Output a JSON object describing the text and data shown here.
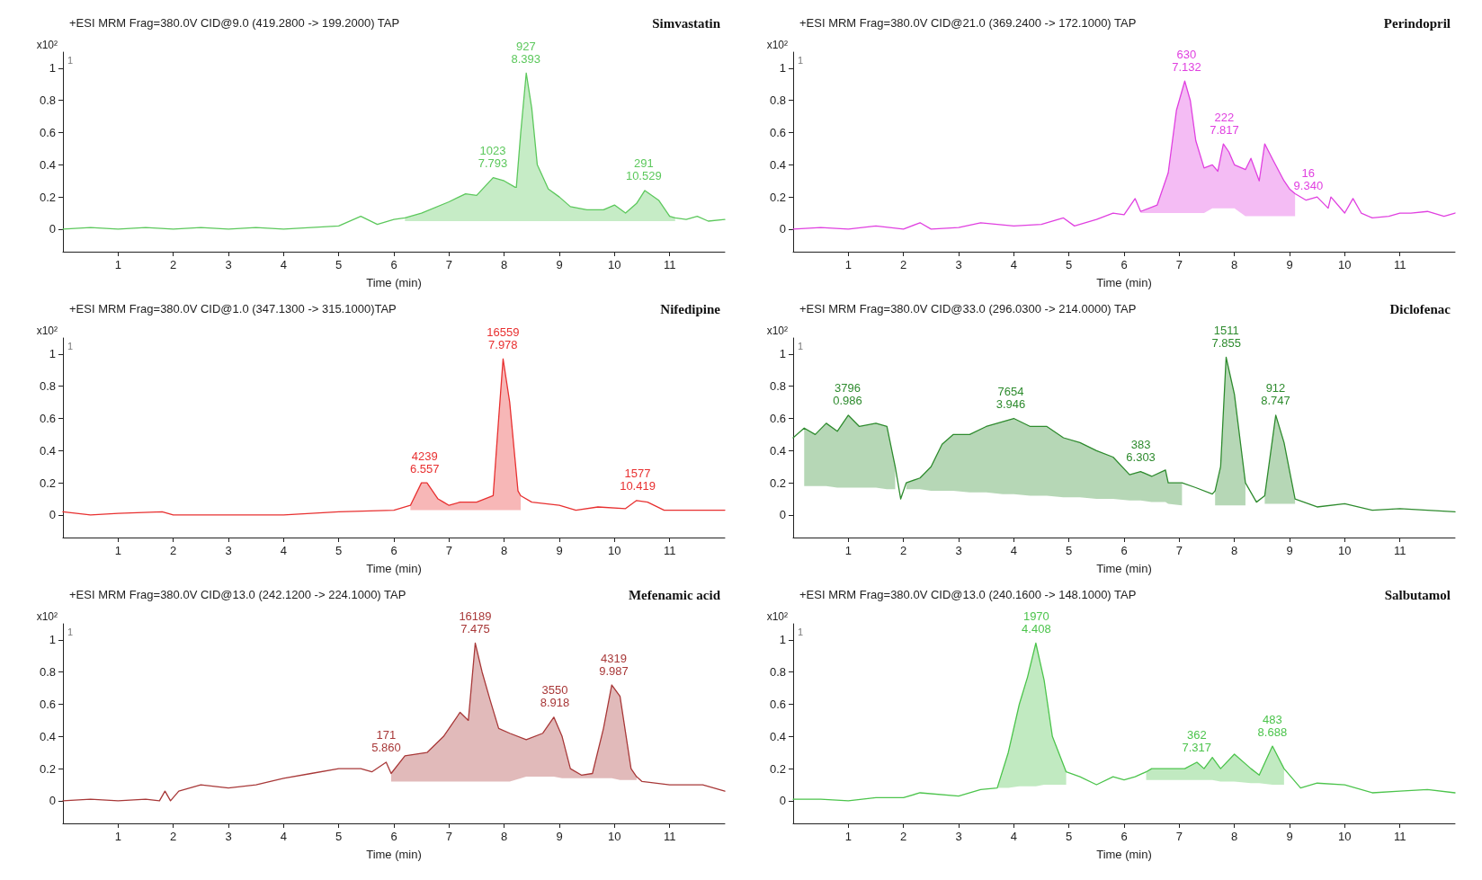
{
  "chart_data": [
    {
      "type": "line",
      "title": "+ESI MRM Frag=380.0V CID@9.0 (419.2800 -> 199.2000) TAP",
      "subtitle": "Simvastatin",
      "xlabel": "Time (min)",
      "ylabel": "x10²",
      "xlim": [
        0,
        12
      ],
      "xticks": [
        1,
        2,
        3,
        4,
        5,
        6,
        7,
        8,
        9,
        10,
        11
      ],
      "ylim": [
        -0.14,
        1.1
      ],
      "yticks": [
        0,
        0.2,
        0.4,
        0.6,
        0.8,
        1
      ],
      "grid": false,
      "marker": "none",
      "annotations": [
        "1",
        {
          "text": "927\n8.393",
          "x": 8.393,
          "y": 0.97
        },
        {
          "text": "1023\n7.793",
          "x": 7.793,
          "y": 0.32
        },
        {
          "text": "291\n10.529",
          "x": 10.529,
          "y": 0.24
        }
      ],
      "series": [
        {
          "color": "#5cc85c",
          "x": [
            0,
            0.5,
            1,
            1.5,
            2,
            2.5,
            3,
            3.5,
            4,
            4.5,
            5,
            5.4,
            5.7,
            6,
            6.2,
            6.5,
            7,
            7.3,
            7.5,
            7.8,
            8,
            8.2,
            8.22,
            8.3,
            8.4,
            8.5,
            8.6,
            8.8,
            9,
            9.2,
            9.5,
            9.8,
            10,
            10.2,
            10.4,
            10.55,
            10.8,
            11,
            11.1,
            11.3,
            11.5,
            11.7,
            12
          ],
          "values": [
            0,
            0.01,
            0,
            0.01,
            0,
            0.01,
            0,
            0.01,
            0,
            0.01,
            0.02,
            0.08,
            0.03,
            0.06,
            0.07,
            0.1,
            0.17,
            0.22,
            0.21,
            0.32,
            0.3,
            0.26,
            0.26,
            0.6,
            0.97,
            0.75,
            0.4,
            0.25,
            0.2,
            0.14,
            0.12,
            0.12,
            0.15,
            0.1,
            0.16,
            0.24,
            0.18,
            0.08,
            0.07,
            0.06,
            0.08,
            0.05,
            0.06
          ],
          "lower": [
            null,
            null,
            null,
            null,
            null,
            null,
            null,
            null,
            null,
            null,
            null,
            null,
            null,
            null,
            0.05,
            0.05,
            0.05,
            0.05,
            0.05,
            0.05,
            0.05,
            0.05,
            0.05,
            0.05,
            0.05,
            0.05,
            0.05,
            0.05,
            0.05,
            0.05,
            0.05,
            0.05,
            0.05,
            0.05,
            0.05,
            0.05,
            0.05,
            0.05,
            0.05,
            null,
            null,
            null,
            null
          ],
          "upper": [
            null,
            null,
            null,
            null,
            null,
            null,
            null,
            null,
            null,
            null,
            null,
            null,
            null,
            null,
            0.07,
            0.1,
            0.17,
            0.22,
            0.21,
            0.32,
            0.3,
            0.26,
            0.26,
            0.6,
            0.97,
            0.75,
            0.4,
            0.25,
            0.2,
            0.14,
            0.12,
            0.12,
            0.15,
            0.1,
            0.16,
            0.24,
            0.18,
            0.08,
            0.07,
            null,
            null,
            null,
            null
          ]
        }
      ]
    },
    {
      "type": "line",
      "title": "+ESI MRM Frag=380.0V CID@21.0 (369.2400 -> 172.1000) TAP",
      "subtitle": "Perindopril",
      "xlabel": "Time (min)",
      "ylabel": "x10²",
      "xlim": [
        0,
        12
      ],
      "xticks": [
        1,
        2,
        3,
        4,
        5,
        6,
        7,
        8,
        9,
        10,
        11
      ],
      "ylim": [
        -0.14,
        1.1
      ],
      "yticks": [
        0,
        0.2,
        0.4,
        0.6,
        0.8,
        1
      ],
      "grid": false,
      "marker": "none",
      "annotations": [
        "1",
        {
          "text": "630\n7.132",
          "x": 7.132,
          "y": 0.92
        },
        {
          "text": "222\n7.817",
          "x": 7.817,
          "y": 0.53
        },
        {
          "text": "16\n9.340",
          "x": 9.34,
          "y": 0.18
        }
      ],
      "series": [
        {
          "color": "#e040e0",
          "x": [
            0,
            0.5,
            1,
            1.5,
            2,
            2.3,
            2.5,
            3,
            3.4,
            4,
            4.5,
            4.9,
            5.1,
            5.5,
            5.8,
            6,
            6.2,
            6.3,
            6.6,
            6.8,
            6.95,
            7.1,
            7.2,
            7.3,
            7.45,
            7.6,
            7.7,
            7.8,
            7.9,
            8,
            8.2,
            8.3,
            8.45,
            8.55,
            8.7,
            8.9,
            9,
            9.1,
            9.3,
            9.5,
            9.7,
            9.75,
            10,
            10.15,
            10.3,
            10.5,
            10.8,
            11,
            11.2,
            11.5,
            11.8,
            12
          ],
          "values": [
            0,
            0.01,
            0,
            0.02,
            0,
            0.04,
            0,
            0.01,
            0.04,
            0.02,
            0.03,
            0.07,
            0.02,
            0.06,
            0.1,
            0.09,
            0.19,
            0.11,
            0.15,
            0.35,
            0.74,
            0.92,
            0.8,
            0.55,
            0.38,
            0.4,
            0.36,
            0.53,
            0.48,
            0.4,
            0.37,
            0.44,
            0.3,
            0.53,
            0.43,
            0.3,
            0.25,
            0.22,
            0.18,
            0.2,
            0.13,
            0.2,
            0.1,
            0.19,
            0.1,
            0.07,
            0.08,
            0.1,
            0.1,
            0.11,
            0.08,
            0.1
          ],
          "lower": [
            null,
            null,
            null,
            null,
            null,
            null,
            null,
            null,
            null,
            null,
            null,
            null,
            null,
            null,
            null,
            null,
            null,
            0.1,
            0.1,
            0.1,
            0.1,
            0.1,
            0.1,
            0.1,
            0.1,
            0.13,
            0.13,
            0.13,
            0.13,
            0.13,
            0.08,
            0.08,
            0.08,
            0.08,
            0.08,
            0.08,
            0.08,
            0.08,
            null,
            null,
            null,
            null,
            null,
            null,
            null,
            null,
            null,
            null,
            null,
            null,
            null,
            null
          ],
          "upper": [
            null,
            null,
            null,
            null,
            null,
            null,
            null,
            null,
            null,
            null,
            null,
            null,
            null,
            null,
            null,
            null,
            null,
            0.11,
            0.15,
            0.35,
            0.74,
            0.92,
            0.8,
            0.55,
            0.38,
            0.4,
            0.36,
            0.53,
            0.48,
            0.4,
            0.37,
            0.44,
            0.3,
            0.53,
            0.43,
            0.3,
            0.25,
            0.22,
            null,
            null,
            null,
            null,
            null,
            null,
            null,
            null,
            null,
            null,
            null,
            null,
            null,
            null
          ]
        }
      ]
    },
    {
      "type": "line",
      "title": "+ESI MRM Frag=380.0V CID@1.0 (347.1300 -> 315.1000)TAP",
      "subtitle": "Nifedipine",
      "xlabel": "Time (min)",
      "ylabel": "x10²",
      "xlim": [
        0,
        12
      ],
      "xticks": [
        1,
        2,
        3,
        4,
        5,
        6,
        7,
        8,
        9,
        10,
        11
      ],
      "ylim": [
        -0.14,
        1.1
      ],
      "yticks": [
        0,
        0.2,
        0.4,
        0.6,
        0.8,
        1
      ],
      "grid": false,
      "marker": "none",
      "annotations": [
        "1",
        {
          "text": "16559\n7.978",
          "x": 7.978,
          "y": 0.97
        },
        {
          "text": "4239\n6.557",
          "x": 6.557,
          "y": 0.2
        },
        {
          "text": "1577\n10.419",
          "x": 10.419,
          "y": 0.09
        }
      ],
      "series": [
        {
          "color": "#e83030",
          "x": [
            0,
            0.5,
            1,
            1.8,
            2,
            3,
            4,
            5,
            6,
            6.3,
            6.5,
            6.6,
            6.8,
            6.9,
            7,
            7.2,
            7.5,
            7.8,
            7.9,
            7.98,
            8.1,
            8.25,
            8.3,
            8.5,
            9,
            9.3,
            9.7,
            10.2,
            10.4,
            10.6,
            10.9,
            11.3,
            12
          ],
          "values": [
            0.02,
            0,
            0.01,
            0.02,
            0,
            0,
            0,
            0.02,
            0.03,
            0.06,
            0.2,
            0.2,
            0.1,
            0.08,
            0.06,
            0.08,
            0.08,
            0.12,
            0.6,
            0.97,
            0.7,
            0.15,
            0.12,
            0.08,
            0.06,
            0.03,
            0.05,
            0.04,
            0.09,
            0.08,
            0.03,
            0.03,
            0.03
          ],
          "lower": [
            null,
            null,
            null,
            null,
            null,
            null,
            null,
            null,
            null,
            0.03,
            0.03,
            0.03,
            0.03,
            0.03,
            0.03,
            0.03,
            0.03,
            0.03,
            0.03,
            0.03,
            0.03,
            0.03,
            0.03,
            null,
            null,
            null,
            null,
            null,
            null,
            null,
            null,
            null,
            null
          ],
          "upper": [
            null,
            null,
            null,
            null,
            null,
            null,
            null,
            null,
            null,
            0.06,
            0.2,
            0.2,
            0.1,
            0.08,
            0.06,
            0.08,
            0.08,
            0.12,
            0.6,
            0.97,
            0.7,
            0.15,
            0.12,
            null,
            null,
            null,
            null,
            null,
            null,
            null,
            null,
            null,
            null
          ]
        }
      ]
    },
    {
      "type": "line",
      "title": "+ESI MRM Frag=380.0V CID@33.0 (296.0300 -> 214.0000) TAP",
      "subtitle": "Diclofenac",
      "xlabel": "Time (min)",
      "ylabel": "x10²",
      "xlim": [
        0,
        12
      ],
      "xticks": [
        1,
        2,
        3,
        4,
        5,
        6,
        7,
        8,
        9,
        10,
        11
      ],
      "ylim": [
        -0.14,
        1.1
      ],
      "yticks": [
        0,
        0.2,
        0.4,
        0.6,
        0.8,
        1
      ],
      "grid": false,
      "marker": "none",
      "annotations": [
        "1",
        {
          "text": "3796\n0.986",
          "x": 0.986,
          "y": 0.62
        },
        {
          "text": "7654\n3.946",
          "x": 3.946,
          "y": 0.6
        },
        {
          "text": "383\n6.303",
          "x": 6.303,
          "y": 0.27
        },
        {
          "text": "1511\n7.855",
          "x": 7.855,
          "y": 0.98
        },
        {
          "text": "912\n8.747",
          "x": 8.747,
          "y": 0.62
        }
      ],
      "series": [
        {
          "color": "#2e8b2e",
          "x": [
            0,
            0.2,
            0.4,
            0.6,
            0.8,
            1,
            1.2,
            1.5,
            1.7,
            1.85,
            1.95,
            2.05,
            2.3,
            2.5,
            2.7,
            2.9,
            3.2,
            3.5,
            3.8,
            4,
            4.3,
            4.6,
            4.9,
            5.2,
            5.5,
            5.8,
            6.1,
            6.3,
            6.5,
            6.75,
            6.8,
            7.05,
            7.3,
            7.6,
            7.65,
            7.75,
            7.85,
            8,
            8.2,
            8.4,
            8.55,
            8.75,
            8.9,
            9.1,
            9.5,
            10,
            10.5,
            11,
            11.5,
            12
          ],
          "values": [
            0.48,
            0.54,
            0.5,
            0.57,
            0.52,
            0.62,
            0.55,
            0.57,
            0.55,
            0.3,
            0.1,
            0.2,
            0.23,
            0.3,
            0.44,
            0.5,
            0.5,
            0.55,
            0.58,
            0.6,
            0.55,
            0.55,
            0.48,
            0.45,
            0.4,
            0.36,
            0.25,
            0.27,
            0.24,
            0.28,
            0.2,
            0.2,
            0.17,
            0.13,
            0.15,
            0.3,
            0.98,
            0.75,
            0.2,
            0.08,
            0.12,
            0.62,
            0.45,
            0.1,
            0.05,
            0.07,
            0.03,
            0.04,
            0.03,
            0.02
          ],
          "lower": [
            null,
            0.18,
            0.18,
            0.18,
            0.17,
            0.17,
            0.17,
            0.17,
            0.16,
            0.16,
            null,
            0.16,
            0.16,
            0.15,
            0.15,
            0.15,
            0.14,
            0.14,
            0.13,
            0.13,
            0.12,
            0.12,
            0.11,
            0.11,
            0.1,
            0.1,
            0.09,
            0.09,
            0.08,
            0.08,
            0.07,
            0.06,
            null,
            null,
            0.06,
            0.06,
            0.06,
            0.06,
            0.06,
            null,
            0.07,
            0.07,
            0.07,
            0.07,
            null,
            null,
            null,
            null,
            null,
            null
          ],
          "upper": [
            null,
            0.54,
            0.5,
            0.57,
            0.52,
            0.62,
            0.55,
            0.57,
            0.55,
            0.3,
            null,
            0.2,
            0.23,
            0.3,
            0.44,
            0.5,
            0.5,
            0.55,
            0.58,
            0.6,
            0.55,
            0.55,
            0.48,
            0.45,
            0.4,
            0.36,
            0.25,
            0.27,
            0.24,
            0.28,
            0.2,
            0.2,
            null,
            null,
            0.15,
            0.3,
            0.98,
            0.75,
            0.2,
            null,
            0.12,
            0.62,
            0.45,
            0.1,
            null,
            null,
            null,
            null,
            null,
            null
          ]
        }
      ]
    },
    {
      "type": "line",
      "title": "+ESI MRM Frag=380.0V CID@13.0 (242.1200 -> 224.1000) TAP",
      "subtitle": "Mefenamic acid",
      "xlabel": "Time (min)",
      "ylabel": "x10²",
      "xlim": [
        0,
        12
      ],
      "xticks": [
        1,
        2,
        3,
        4,
        5,
        6,
        7,
        8,
        9,
        10,
        11
      ],
      "ylim": [
        -0.14,
        1.1
      ],
      "yticks": [
        0,
        0.2,
        0.4,
        0.6,
        0.8,
        1
      ],
      "grid": false,
      "marker": "none",
      "annotations": [
        "1",
        {
          "text": "16189\n7.475",
          "x": 7.475,
          "y": 0.98
        },
        {
          "text": "171\n5.860",
          "x": 5.86,
          "y": 0.24
        },
        {
          "text": "3550\n8.918",
          "x": 8.918,
          "y": 0.52
        },
        {
          "text": "4319\n9.987",
          "x": 9.987,
          "y": 0.72
        }
      ],
      "series": [
        {
          "color": "#a83838",
          "x": [
            0,
            0.5,
            1,
            1.5,
            1.75,
            1.85,
            1.95,
            2.1,
            2.5,
            3,
            3.5,
            4,
            4.5,
            5,
            5.4,
            5.6,
            5.86,
            5.95,
            6.2,
            6.6,
            6.9,
            7.2,
            7.35,
            7.475,
            7.6,
            7.75,
            7.9,
            8.1,
            8.4,
            8.7,
            8.9,
            9.05,
            9.2,
            9.4,
            9.6,
            9.8,
            9.95,
            10.1,
            10.3,
            10.4,
            10.5,
            11,
            11.3,
            11.6,
            12
          ],
          "values": [
            0,
            0.01,
            0,
            0.01,
            0,
            0.06,
            0,
            0.06,
            0.1,
            0.08,
            0.1,
            0.14,
            0.17,
            0.2,
            0.2,
            0.18,
            0.24,
            0.17,
            0.28,
            0.3,
            0.4,
            0.55,
            0.5,
            0.98,
            0.8,
            0.62,
            0.45,
            0.42,
            0.38,
            0.42,
            0.52,
            0.4,
            0.2,
            0.16,
            0.17,
            0.45,
            0.72,
            0.65,
            0.2,
            0.15,
            0.12,
            0.1,
            0.1,
            0.1,
            0.06
          ],
          "lower": [
            null,
            null,
            null,
            null,
            null,
            null,
            null,
            null,
            null,
            null,
            null,
            null,
            null,
            null,
            null,
            null,
            null,
            0.12,
            0.12,
            0.12,
            0.12,
            0.12,
            0.12,
            0.12,
            0.12,
            0.12,
            0.12,
            0.12,
            0.15,
            0.15,
            0.15,
            0.14,
            0.14,
            0.14,
            0.14,
            0.14,
            0.14,
            0.13,
            0.13,
            0.13,
            null,
            null,
            null,
            null,
            null
          ],
          "upper": [
            null,
            null,
            null,
            null,
            null,
            null,
            null,
            null,
            null,
            null,
            null,
            null,
            null,
            null,
            null,
            null,
            null,
            0.17,
            0.28,
            0.3,
            0.4,
            0.55,
            0.5,
            0.98,
            0.8,
            0.62,
            0.45,
            0.42,
            0.38,
            0.42,
            0.52,
            0.4,
            0.2,
            0.16,
            0.17,
            0.45,
            0.72,
            0.65,
            0.2,
            0.15,
            null,
            null,
            null,
            null,
            null
          ]
        }
      ]
    },
    {
      "type": "line",
      "title": "+ESI MRM Frag=380.0V CID@13.0 (240.1600 -> 148.1000) TAP",
      "subtitle": "Salbutamol",
      "xlabel": "Time (min)",
      "ylabel": "x10²",
      "xlim": [
        0,
        12
      ],
      "xticks": [
        1,
        2,
        3,
        4,
        5,
        6,
        7,
        8,
        9,
        10,
        11
      ],
      "ylim": [
        -0.14,
        1.1
      ],
      "yticks": [
        0,
        0.2,
        0.4,
        0.6,
        0.8,
        1
      ],
      "grid": false,
      "marker": "none",
      "annotations": [
        "1",
        {
          "text": "1970\n4.408",
          "x": 4.408,
          "y": 0.98
        },
        {
          "text": "362\n7.317",
          "x": 7.317,
          "y": 0.24
        },
        {
          "text": "483\n8.688",
          "x": 8.688,
          "y": 0.34
        }
      ],
      "series": [
        {
          "color": "#4cc44c",
          "x": [
            0,
            0.5,
            1,
            1.5,
            2,
            2.3,
            3,
            3.4,
            3.7,
            3.9,
            4.1,
            4.25,
            4.4,
            4.55,
            4.7,
            4.95,
            5.2,
            5.5,
            5.8,
            6,
            6.2,
            6.4,
            6.5,
            6.8,
            7.1,
            7.32,
            7.45,
            7.6,
            7.75,
            8,
            8.3,
            8.45,
            8.69,
            8.9,
            9.2,
            9.5,
            10,
            10.5,
            11,
            11.5,
            12
          ],
          "values": [
            0.01,
            0.01,
            0,
            0.02,
            0.02,
            0.05,
            0.03,
            0.07,
            0.08,
            0.3,
            0.6,
            0.77,
            0.98,
            0.75,
            0.4,
            0.18,
            0.15,
            0.1,
            0.15,
            0.13,
            0.15,
            0.18,
            0.2,
            0.2,
            0.2,
            0.24,
            0.2,
            0.27,
            0.2,
            0.29,
            0.2,
            0.16,
            0.34,
            0.2,
            0.08,
            0.11,
            0.1,
            0.05,
            0.06,
            0.07,
            0.05
          ],
          "lower": [
            null,
            null,
            null,
            null,
            null,
            null,
            null,
            null,
            0.08,
            0.08,
            0.09,
            0.09,
            0.09,
            0.1,
            0.1,
            0.1,
            null,
            null,
            null,
            null,
            null,
            0.13,
            0.13,
            0.13,
            0.13,
            0.13,
            0.13,
            0.13,
            0.12,
            0.12,
            0.11,
            0.11,
            0.1,
            0.1,
            null,
            null,
            null,
            null,
            null,
            null,
            null
          ],
          "upper": [
            null,
            null,
            null,
            null,
            null,
            null,
            null,
            null,
            0.08,
            0.3,
            0.6,
            0.77,
            0.98,
            0.75,
            0.4,
            0.18,
            null,
            null,
            null,
            null,
            null,
            0.18,
            0.2,
            0.2,
            0.2,
            0.24,
            0.2,
            0.27,
            0.2,
            0.29,
            0.2,
            0.16,
            0.34,
            0.2,
            null,
            null,
            null,
            null,
            null,
            null,
            null
          ]
        }
      ]
    }
  ]
}
